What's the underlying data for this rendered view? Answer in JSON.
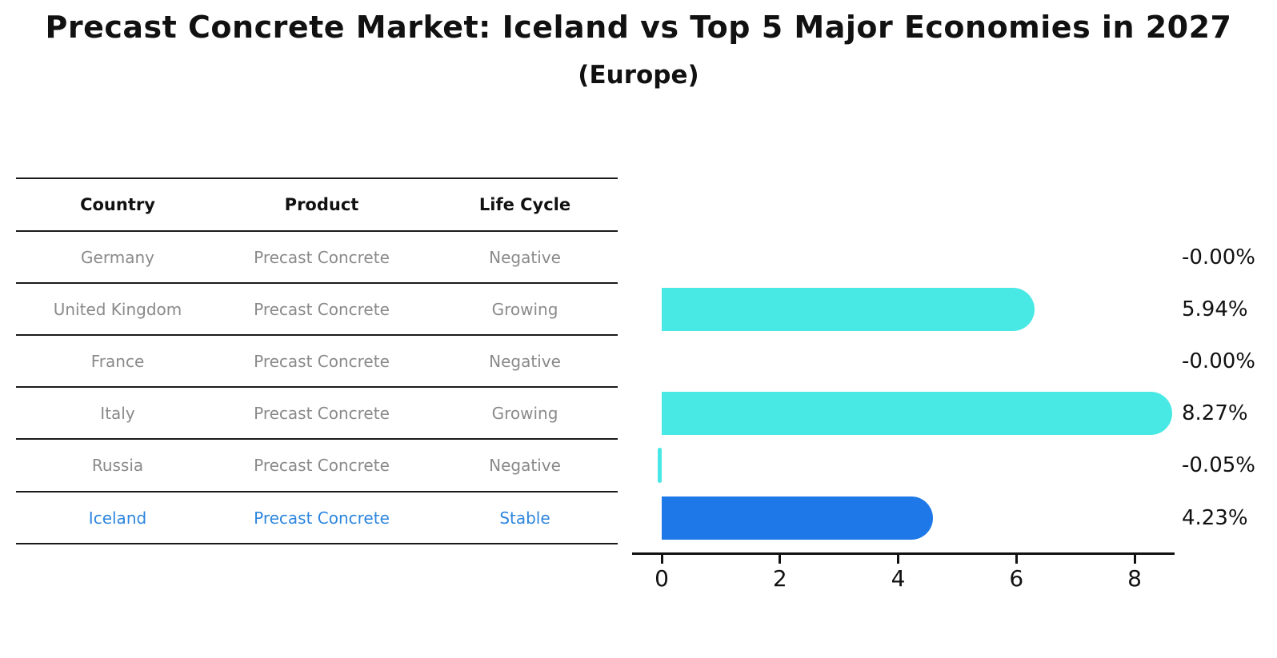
{
  "title": "Precast Concrete Market: Iceland vs Top 5 Major Economies in 2027",
  "subtitle": "(Europe)",
  "table": {
    "headers": [
      "Country",
      "Product",
      "Life Cycle"
    ]
  },
  "chart_data": {
    "type": "bar",
    "orientation": "horizontal",
    "title": "Precast Concrete Market: Iceland vs Top 5 Major Economies in 2027",
    "subtitle": "(Europe)",
    "xlabel": "",
    "ylabel": "",
    "x_ticks": [
      "0",
      "2",
      "4",
      "6",
      "8"
    ],
    "xlim": [
      -0.5,
      8.7
    ],
    "grid": false,
    "legend": null,
    "rows": [
      {
        "country": "Germany",
        "product": "Precast Concrete",
        "life_cycle": "Negative",
        "value": 0.0,
        "value_label": "-0.00%",
        "highlighted": false
      },
      {
        "country": "United Kingdom",
        "product": "Precast Concrete",
        "life_cycle": "Growing",
        "value": 5.94,
        "value_label": "5.94%",
        "highlighted": false
      },
      {
        "country": "France",
        "product": "Precast Concrete",
        "life_cycle": "Negative",
        "value": 0.0,
        "value_label": "-0.00%",
        "highlighted": false
      },
      {
        "country": "Italy",
        "product": "Precast Concrete",
        "life_cycle": "Growing",
        "value": 8.27,
        "value_label": "8.27%",
        "highlighted": false
      },
      {
        "country": "Russia",
        "product": "Precast Concrete",
        "life_cycle": "Negative",
        "value": -0.05,
        "value_label": "-0.05%",
        "highlighted": false
      },
      {
        "country": "Iceland",
        "product": "Precast Concrete",
        "life_cycle": "Stable",
        "value": 4.23,
        "value_label": "4.23%",
        "highlighted": true
      }
    ],
    "colors": {
      "bar_default": "#48e8e4",
      "bar_highlight": "#1e78e8",
      "highlight_text": "#2e86de",
      "row_text": "#8a8a8a",
      "header_text": "#111111",
      "axis": "#111111"
    }
  }
}
